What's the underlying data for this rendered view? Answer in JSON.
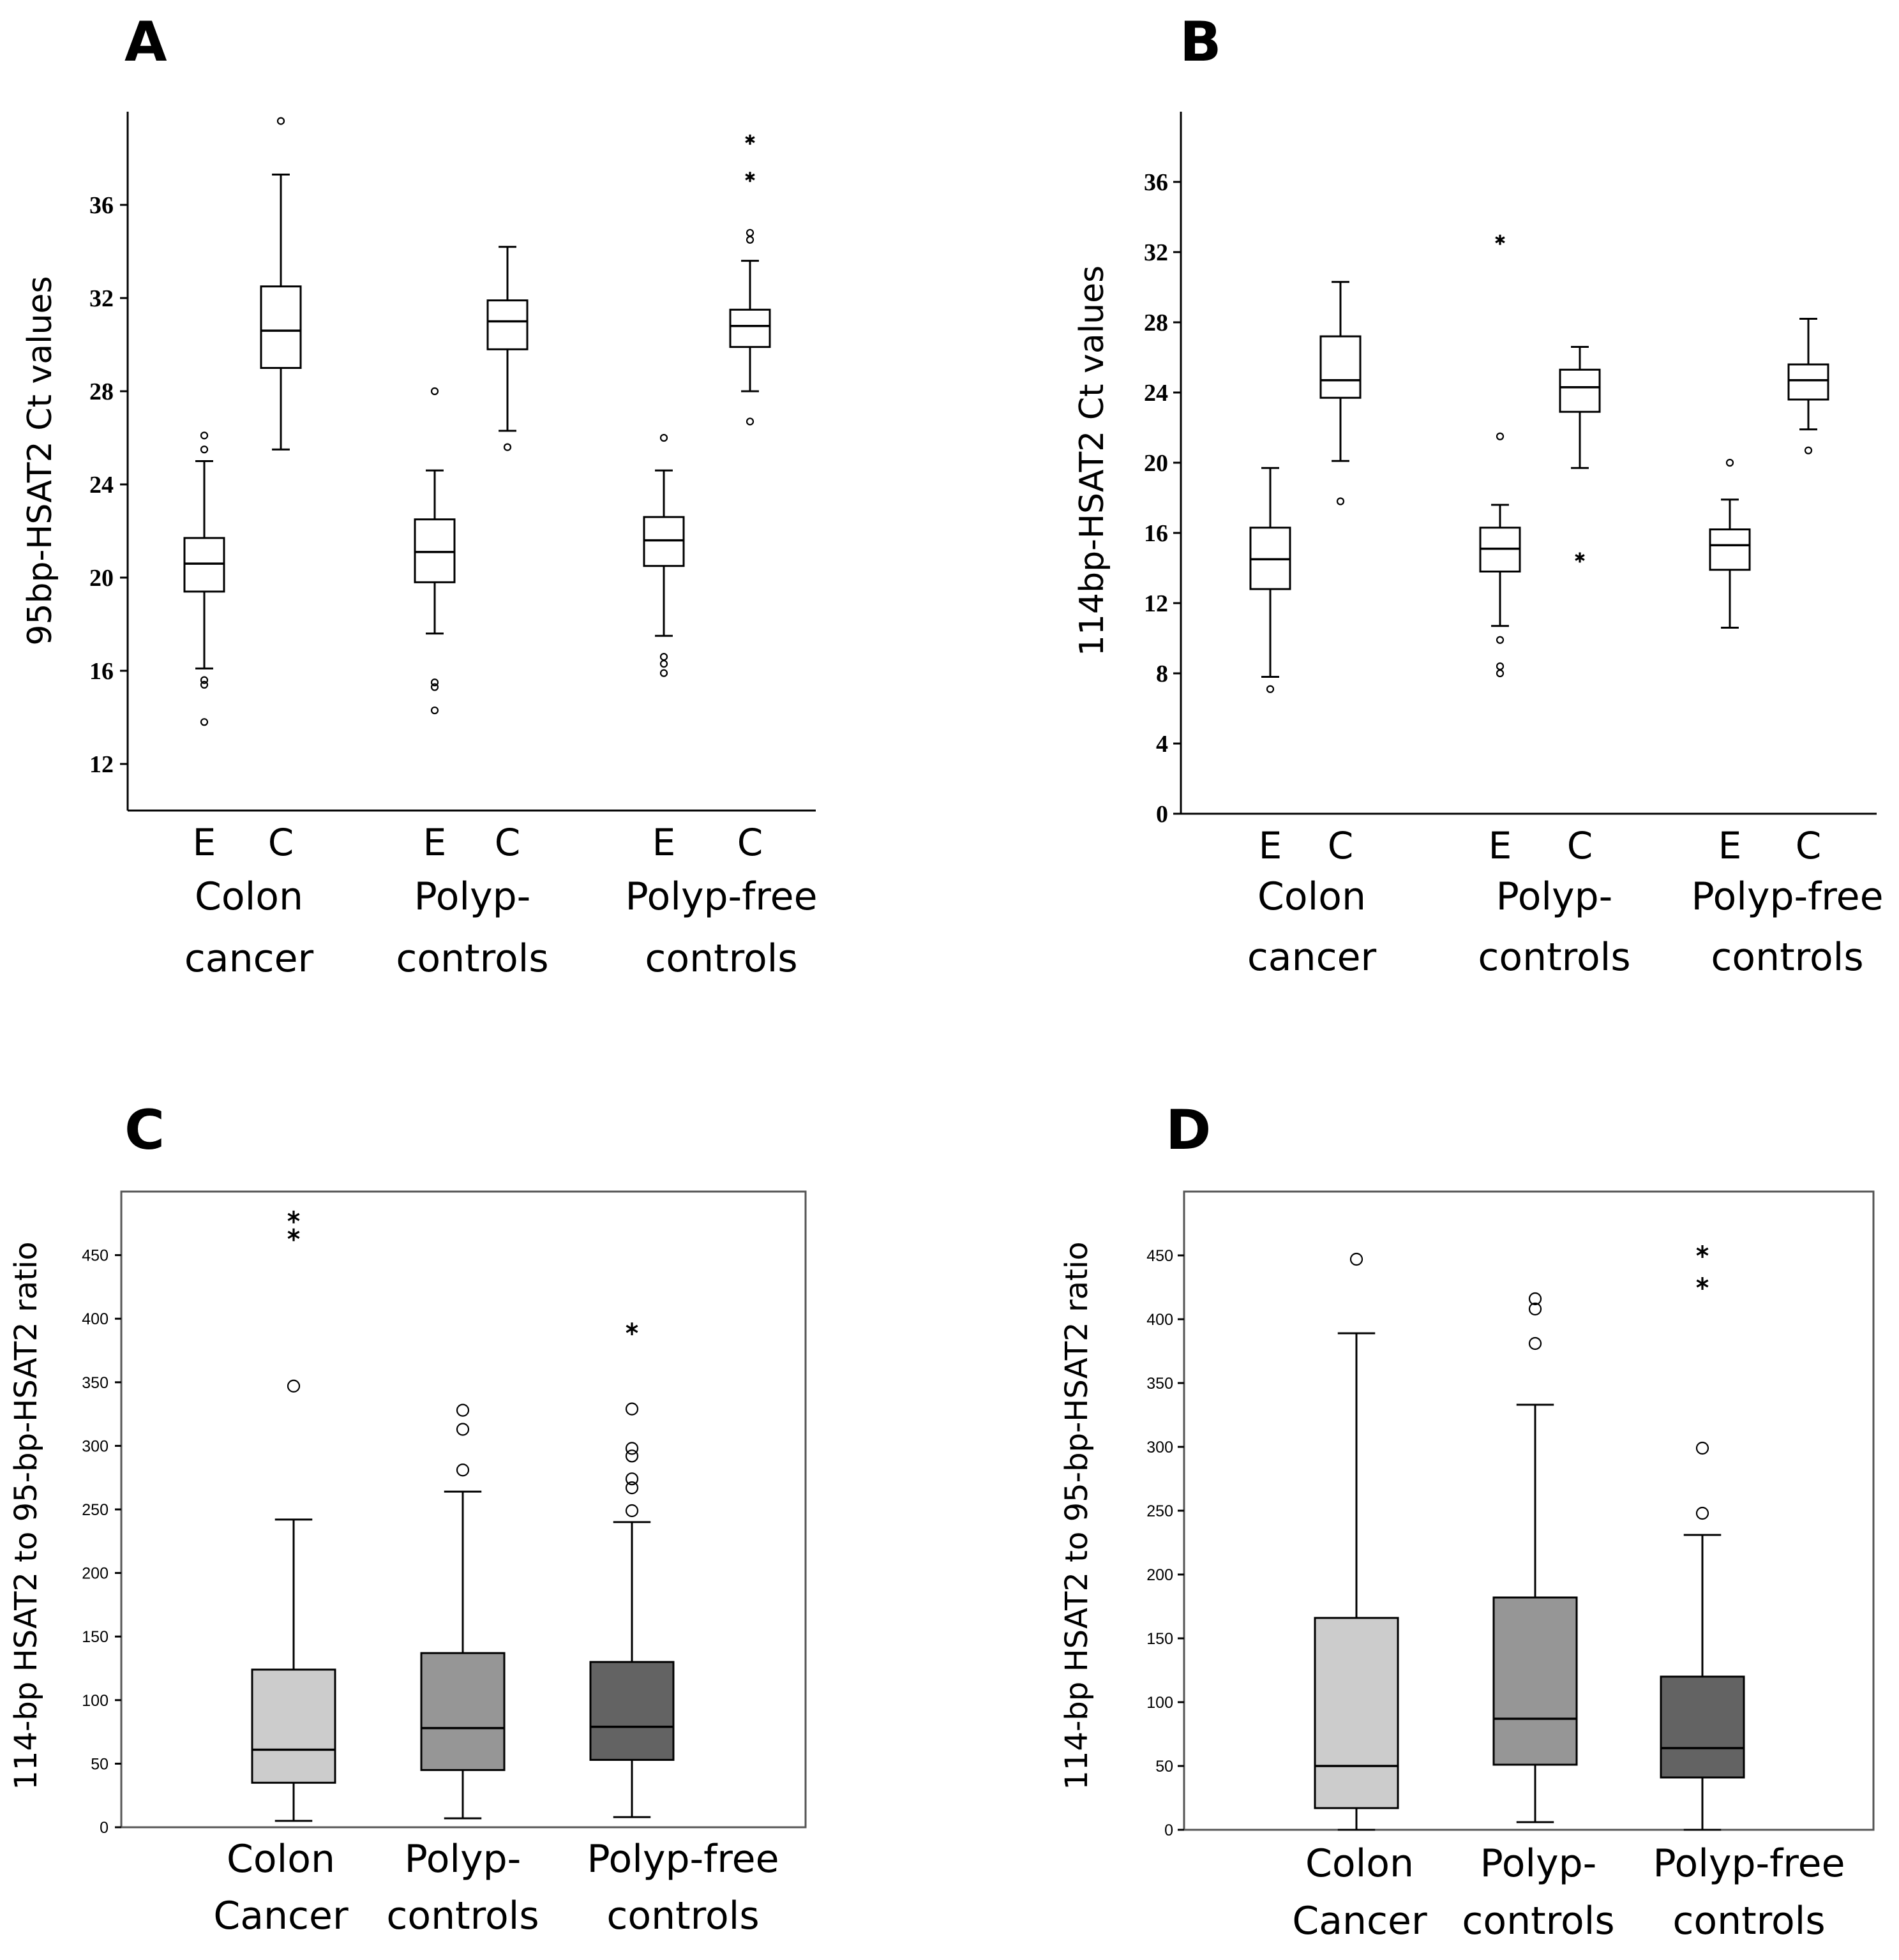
{
  "figure": {
    "panels": [
      "A",
      "B",
      "C",
      "D"
    ]
  },
  "chart_data": [
    {
      "panel": "A",
      "type": "box",
      "ylabel": "95bp-HSAT2 Ct values",
      "ylim": [
        10,
        40
      ],
      "yticks": [
        12,
        16,
        20,
        24,
        28,
        32,
        36
      ],
      "groups": [
        {
          "label_lines": [
            "Colon",
            "cancer"
          ],
          "subs": [
            "E",
            "C"
          ]
        },
        {
          "label_lines": [
            "Polyp-",
            "controls"
          ],
          "subs": [
            "E",
            "C"
          ]
        },
        {
          "label_lines": [
            "Polyp-free",
            "controls"
          ],
          "subs": [
            "E",
            "C"
          ]
        }
      ],
      "boxes": [
        {
          "group": 0,
          "sub": "E",
          "min": 16.1,
          "q1": 19.4,
          "median": 20.6,
          "q3": 21.7,
          "max": 25.0,
          "outliers": [
            26.1,
            25.5,
            15.6,
            15.4,
            13.8
          ],
          "extremes": []
        },
        {
          "group": 0,
          "sub": "C",
          "min": 25.5,
          "q1": 29.0,
          "median": 30.6,
          "q3": 32.5,
          "max": 37.3,
          "outliers": [
            39.6
          ],
          "extremes": []
        },
        {
          "group": 1,
          "sub": "E",
          "min": 17.6,
          "q1": 19.8,
          "median": 21.1,
          "q3": 22.5,
          "max": 24.6,
          "outliers": [
            28.0,
            15.5,
            15.3,
            14.3
          ],
          "extremes": []
        },
        {
          "group": 1,
          "sub": "C",
          "min": 26.3,
          "q1": 29.8,
          "median": 31.0,
          "q3": 31.9,
          "max": 34.2,
          "outliers": [
            25.6
          ],
          "extremes": []
        },
        {
          "group": 2,
          "sub": "E",
          "min": 17.5,
          "q1": 20.5,
          "median": 21.6,
          "q3": 22.6,
          "max": 24.6,
          "outliers": [
            26.0,
            16.6,
            16.3,
            15.9
          ],
          "extremes": []
        },
        {
          "group": 2,
          "sub": "C",
          "min": 28.0,
          "q1": 29.9,
          "median": 30.8,
          "q3": 31.5,
          "max": 33.6,
          "outliers": [
            34.8,
            34.5,
            26.7
          ],
          "extremes": [
            38.8,
            37.2
          ]
        }
      ]
    },
    {
      "panel": "B",
      "type": "box",
      "ylabel": "114bp-HSAT2 Ct values",
      "ylim": [
        0,
        40
      ],
      "yticks": [
        0,
        4,
        8,
        12,
        16,
        20,
        24,
        28,
        32,
        36
      ],
      "groups": [
        {
          "label_lines": [
            "Colon",
            "cancer"
          ],
          "subs": [
            "E",
            "C"
          ]
        },
        {
          "label_lines": [
            "Polyp-",
            "controls"
          ],
          "subs": [
            "E",
            "C"
          ]
        },
        {
          "label_lines": [
            "Polyp-free",
            "controls"
          ],
          "subs": [
            "E",
            "C"
          ]
        }
      ],
      "boxes": [
        {
          "group": 0,
          "sub": "E",
          "min": 7.8,
          "q1": 12.8,
          "median": 14.5,
          "q3": 16.3,
          "max": 19.7,
          "outliers": [
            7.1
          ],
          "extremes": []
        },
        {
          "group": 0,
          "sub": "C",
          "min": 20.1,
          "q1": 23.7,
          "median": 24.7,
          "q3": 27.2,
          "max": 30.3,
          "outliers": [
            17.8
          ],
          "extremes": []
        },
        {
          "group": 1,
          "sub": "E",
          "min": 10.7,
          "q1": 13.8,
          "median": 15.1,
          "q3": 16.3,
          "max": 17.6,
          "outliers": [
            21.5,
            9.9,
            8.4,
            8.0
          ],
          "extremes": [
            32.7
          ]
        },
        {
          "group": 1,
          "sub": "C",
          "min": 19.7,
          "q1": 22.9,
          "median": 24.3,
          "q3": 25.3,
          "max": 26.6,
          "outliers": [],
          "extremes": [
            14.6
          ]
        },
        {
          "group": 2,
          "sub": "E",
          "min": 10.6,
          "q1": 13.9,
          "median": 15.3,
          "q3": 16.2,
          "max": 17.9,
          "outliers": [
            20.0
          ],
          "extremes": []
        },
        {
          "group": 2,
          "sub": "C",
          "min": 21.9,
          "q1": 23.6,
          "median": 24.7,
          "q3": 25.6,
          "max": 28.2,
          "outliers": [
            20.7
          ],
          "extremes": []
        }
      ]
    },
    {
      "panel": "C",
      "type": "box",
      "ylabel": "114-bp HSAT2 to 95-bp-HSAT2 ratio",
      "ylim": [
        0,
        500
      ],
      "yticks": [
        0,
        50,
        100,
        150,
        200,
        250,
        300,
        350,
        400,
        450
      ],
      "groups": [
        {
          "label_lines": [
            "Colon",
            "Cancer"
          ],
          "color": "#cccccc",
          "min": 5,
          "q1": 35,
          "median": 61,
          "q3": 124,
          "max": 242,
          "outliers": [
            347
          ],
          "extremes": [
            480,
            466
          ]
        },
        {
          "label_lines": [
            "Polyp-",
            "controls"
          ],
          "color": "#969696",
          "min": 7,
          "q1": 45,
          "median": 78,
          "q3": 137,
          "max": 264,
          "outliers": [
            328,
            313,
            281
          ],
          "extremes": []
        },
        {
          "label_lines": [
            "Polyp-free",
            "controls"
          ],
          "color": "#636363",
          "min": 8,
          "q1": 53,
          "median": 79,
          "q3": 130,
          "max": 240,
          "outliers": [
            329,
            298,
            292,
            274,
            267,
            249
          ],
          "extremes": [
            392
          ]
        }
      ]
    },
    {
      "panel": "D",
      "type": "box",
      "ylabel": "114-bp HSAT2 to 95-bp-HSAT2 ratio",
      "ylim": [
        0,
        500
      ],
      "yticks": [
        0,
        50,
        100,
        150,
        200,
        250,
        300,
        350,
        400,
        450
      ],
      "groups": [
        {
          "label_lines": [
            "Colon",
            "Cancer"
          ],
          "color": "#cccccc",
          "min": 0,
          "q1": 17,
          "median": 50,
          "q3": 166,
          "max": 389,
          "outliers": [
            447
          ],
          "extremes": []
        },
        {
          "label_lines": [
            "Polyp-",
            "controls"
          ],
          "color": "#969696",
          "min": 6,
          "q1": 51,
          "median": 87,
          "q3": 182,
          "max": 333,
          "outliers": [
            416,
            408,
            381
          ],
          "extremes": []
        },
        {
          "label_lines": [
            "Polyp-free",
            "controls"
          ],
          "color": "#636363",
          "min": 0,
          "q1": 41,
          "median": 64,
          "q3": 120,
          "max": 231,
          "outliers": [
            299,
            248
          ],
          "extremes": [
            453,
            428
          ]
        }
      ]
    }
  ]
}
